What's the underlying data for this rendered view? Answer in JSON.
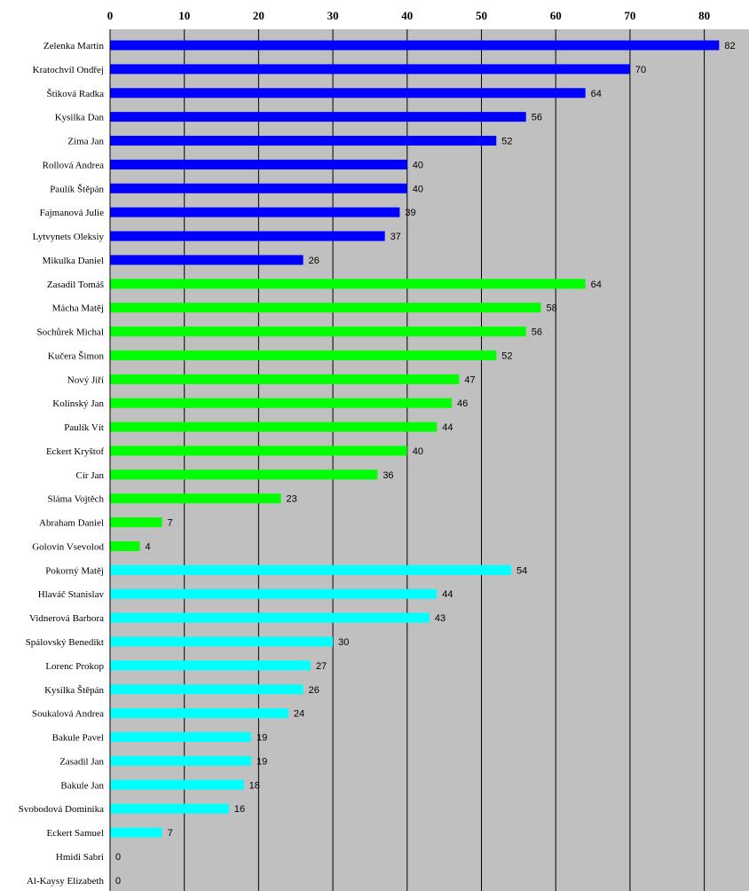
{
  "chart_data": {
    "type": "bar",
    "orientation": "horizontal",
    "title": "",
    "xlabel": "",
    "ylabel": "",
    "xlim": [
      0,
      85
    ],
    "ticks": [
      0,
      10,
      20,
      30,
      40,
      50,
      60,
      70,
      80
    ],
    "tick_labels": [
      "0",
      "10",
      "20",
      "30",
      "40",
      "50",
      "60",
      "70",
      "80"
    ],
    "axis_position": "top",
    "grid": true,
    "legend": "none",
    "colors": {
      "plot_background": "#c0c0c0",
      "group_1": "#0000ff",
      "group_2": "#00ff00",
      "group_3": "#00ffff",
      "grid": "#000000"
    },
    "bars": [
      {
        "label": "Zelenka Martin",
        "value": 82,
        "group": "group_1",
        "value_label": "82"
      },
      {
        "label": "Kratochvíl Ondřej",
        "value": 70,
        "group": "group_1",
        "value_label": "70"
      },
      {
        "label": "Štiková Radka",
        "value": 64,
        "group": "group_1",
        "value_label": "64"
      },
      {
        "label": "Kysilka Dan",
        "value": 56,
        "group": "group_1",
        "value_label": "56"
      },
      {
        "label": "Zima Jan",
        "value": 52,
        "group": "group_1",
        "value_label": "52"
      },
      {
        "label": "Rollová Andrea",
        "value": 40,
        "group": "group_1",
        "value_label": "40"
      },
      {
        "label": "Paulík Štěpán",
        "value": 40,
        "group": "group_1",
        "value_label": "40"
      },
      {
        "label": "Fajmanová Julie",
        "value": 39,
        "group": "group_1",
        "value_label": "39"
      },
      {
        "label": "Lytvynets Oleksiy",
        "value": 37,
        "group": "group_1",
        "value_label": "37"
      },
      {
        "label": "Mikulka Daniel",
        "value": 26,
        "group": "group_1",
        "value_label": "26"
      },
      {
        "label": "Zasadil Tomáš",
        "value": 64,
        "group": "group_2",
        "value_label": "64"
      },
      {
        "label": "Mácha Matěj",
        "value": 58,
        "group": "group_2",
        "value_label": "58"
      },
      {
        "label": "Sochůrek Michal",
        "value": 56,
        "group": "group_2",
        "value_label": "56"
      },
      {
        "label": "Kučera Šimon",
        "value": 52,
        "group": "group_2",
        "value_label": "52"
      },
      {
        "label": "Nový Jiří",
        "value": 47,
        "group": "group_2",
        "value_label": "47"
      },
      {
        "label": "Kolínský Jan",
        "value": 46,
        "group": "group_2",
        "value_label": "46"
      },
      {
        "label": "Paulík Vít",
        "value": 44,
        "group": "group_2",
        "value_label": "44"
      },
      {
        "label": "Eckert Kryštof",
        "value": 40,
        "group": "group_2",
        "value_label": "40"
      },
      {
        "label": "Cír Jan",
        "value": 36,
        "group": "group_2",
        "value_label": "36"
      },
      {
        "label": "Sláma Vojtěch",
        "value": 23,
        "group": "group_2",
        "value_label": "23"
      },
      {
        "label": "Abraham Daniel",
        "value": 7,
        "group": "group_2",
        "value_label": "7"
      },
      {
        "label": "Golovin Vsevolod",
        "value": 4,
        "group": "group_2",
        "value_label": "4"
      },
      {
        "label": "Pokorný Matěj",
        "value": 54,
        "group": "group_3",
        "value_label": "54"
      },
      {
        "label": "Hlaváč Stanislav",
        "value": 44,
        "group": "group_3",
        "value_label": "44"
      },
      {
        "label": "Vidnerová Barbora",
        "value": 43,
        "group": "group_3",
        "value_label": "43"
      },
      {
        "label": "Spálovský Benedikt",
        "value": 30,
        "group": "group_3",
        "value_label": "30"
      },
      {
        "label": "Lorenc Prokop",
        "value": 27,
        "group": "group_3",
        "value_label": "27"
      },
      {
        "label": "Kysilka Štěpán",
        "value": 26,
        "group": "group_3",
        "value_label": "26"
      },
      {
        "label": "Soukalová Andrea",
        "value": 24,
        "group": "group_3",
        "value_label": "24"
      },
      {
        "label": "Bakule Pavel",
        "value": 19,
        "group": "group_3",
        "value_label": "19"
      },
      {
        "label": "Zasadil Jan",
        "value": 19,
        "group": "group_3",
        "value_label": "19"
      },
      {
        "label": "Bakule Jan",
        "value": 18,
        "group": "group_3",
        "value_label": "18"
      },
      {
        "label": "Svobodová Dominika",
        "value": 16,
        "group": "group_3",
        "value_label": "16"
      },
      {
        "label": "Eckert Samuel",
        "value": 7,
        "group": "group_3",
        "value_label": "7"
      },
      {
        "label": "Hmidi Sabri",
        "value": 0,
        "group": "group_3",
        "value_label": "0"
      },
      {
        "label": "Al-Kaysy Elizabeth",
        "value": 0,
        "group": "group_3",
        "value_label": "0"
      }
    ]
  }
}
